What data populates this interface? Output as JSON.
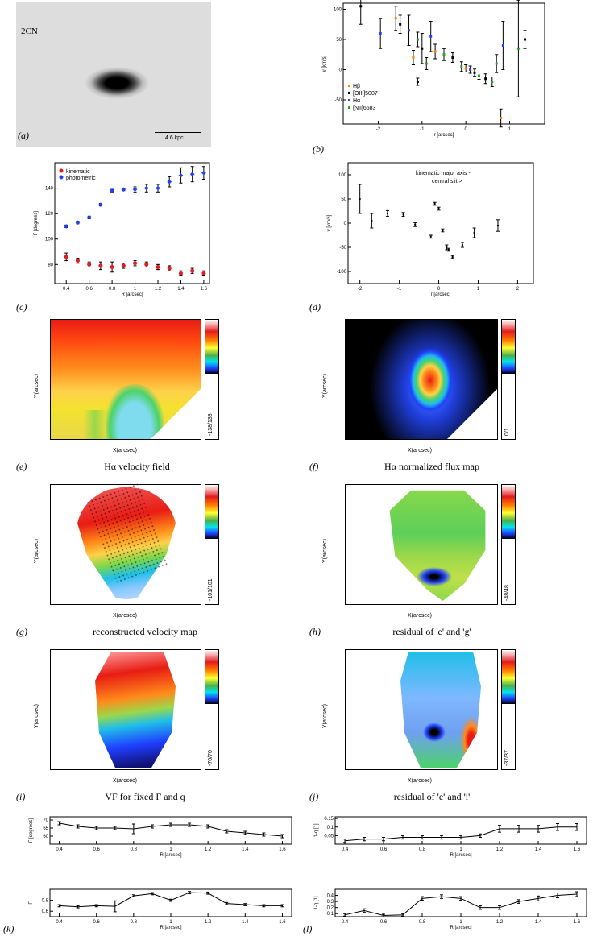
{
  "panels": {
    "a": {
      "label": "(a)",
      "object": "2CN",
      "scale": "4.6 kpc"
    },
    "b": {
      "label": "(b)",
      "ylabel": "v [km/s]",
      "xlabel": "r [arcsec]"
    },
    "c": {
      "label": "(c)",
      "ylabel": "Γ [degrees]",
      "xlabel": "R [arcsec]"
    },
    "d": {
      "label": "(d)",
      "ylabel": "v [km/s]",
      "xlabel": "r [arcsec]",
      "legend": [
        "kinematic major axis -",
        "central slit >"
      ]
    },
    "e": {
      "label": "(e)",
      "title": "Hα velocity field",
      "xlabel": "X(arcsec)",
      "ylabel": "Y(arcsec)",
      "range": "-138/138"
    },
    "f": {
      "label": "(f)",
      "title": "Hα normalized flux map",
      "xlabel": "X(arcsec)",
      "ylabel": "Y(arcsec)",
      "range": "0/1"
    },
    "g": {
      "label": "(g)",
      "title": "reconstructed velocity map",
      "xlabel": "X(arcsec)",
      "ylabel": "Y(arcsec)",
      "range": "-101/101"
    },
    "h": {
      "label": "(h)",
      "title": "residual of 'e' and 'g'",
      "xlabel": "X(arcsec)",
      "ylabel": "Y(arcsec)",
      "range": "-48/48"
    },
    "i": {
      "label": "(i)",
      "title": "VF for fixed Γ and q",
      "xlabel": "X(arcsec)",
      "ylabel": "Y(arcsec)",
      "range": "-70/70"
    },
    "j": {
      "label": "(j)",
      "title": "residual of 'e' and 'i'",
      "xlabel": "X(arcsec)",
      "ylabel": "Y(arcsec)",
      "range": "-37/37"
    },
    "k": {
      "label": "(k)",
      "xlabel": "R [arcsec]"
    },
    "l": {
      "label": "(l)",
      "xlabel": "R [arcsec]"
    }
  },
  "chart_data": [
    {
      "id": "b",
      "type": "scatter",
      "xlabel": "r [arcsec]",
      "ylabel": "v [km/s]",
      "xlim": [
        -2.8,
        1.8
      ],
      "ylim": [
        -90,
        110
      ],
      "xticks": [
        -2,
        -1,
        0,
        1
      ],
      "yticks": [
        -50,
        0,
        50,
        100
      ],
      "legend": [
        {
          "name": "Hβ",
          "color": "#ff7f00",
          "marker": "square"
        },
        {
          "name": "[OIII]5007",
          "color": "#000000",
          "marker": "triangle"
        },
        {
          "name": "Hα",
          "color": "#1f3fff",
          "marker": "x"
        },
        {
          "name": "[NII]6583",
          "color": "#2ca02c",
          "marker": "square"
        }
      ],
      "points": [
        {
          "x": -2.4,
          "y": 105,
          "e": 30,
          "c": "#000000"
        },
        {
          "x": -1.95,
          "y": 60,
          "e": 25,
          "c": "#1f3fff"
        },
        {
          "x": -1.6,
          "y": 85,
          "e": 20,
          "c": "#ff7f00"
        },
        {
          "x": -1.5,
          "y": 75,
          "e": 15,
          "c": "#000000"
        },
        {
          "x": -1.3,
          "y": 65,
          "e": 25,
          "c": "#1f3fff"
        },
        {
          "x": -1.2,
          "y": 20,
          "e": 12,
          "c": "#ff7f00"
        },
        {
          "x": -1.1,
          "y": 50,
          "e": 12,
          "c": "#2ca02c"
        },
        {
          "x": -1.0,
          "y": 35,
          "e": 25,
          "c": "#000000"
        },
        {
          "x": -0.9,
          "y": 10,
          "e": 10,
          "c": "#2ca02c"
        },
        {
          "x": -0.8,
          "y": 55,
          "e": 25,
          "c": "#1f3fff"
        },
        {
          "x": -0.7,
          "y": 30,
          "e": 12,
          "c": "#ff7f00"
        },
        {
          "x": -0.5,
          "y": 25,
          "e": 10,
          "c": "#2ca02c"
        },
        {
          "x": -0.3,
          "y": 20,
          "e": 8,
          "c": "#000000"
        },
        {
          "x": -0.1,
          "y": 5,
          "e": 8,
          "c": "#2ca02c"
        },
        {
          "x": 0.0,
          "y": 2,
          "e": 6,
          "c": "#ff7f00"
        },
        {
          "x": 0.1,
          "y": 0,
          "e": 6,
          "c": "#1f3fff"
        },
        {
          "x": 0.2,
          "y": -5,
          "e": 6,
          "c": "#000000"
        },
        {
          "x": 0.3,
          "y": -10,
          "e": 6,
          "c": "#2ca02c"
        },
        {
          "x": 0.45,
          "y": -15,
          "e": 8,
          "c": "#000000"
        },
        {
          "x": 0.6,
          "y": -20,
          "e": 8,
          "c": "#2ca02c"
        },
        {
          "x": 0.7,
          "y": 10,
          "e": 15,
          "c": "#2ca02c"
        },
        {
          "x": 0.8,
          "y": -80,
          "e": 15,
          "c": "#ff7f00"
        },
        {
          "x": 0.85,
          "y": 40,
          "e": 40,
          "c": "#1f3fff"
        },
        {
          "x": 1.2,
          "y": 35,
          "e": 80,
          "c": "#2ca02c"
        },
        {
          "x": 1.35,
          "y": 50,
          "e": 15,
          "c": "#000000"
        },
        {
          "x": -1.1,
          "y": -20,
          "e": 6,
          "c": "#000000"
        }
      ]
    },
    {
      "id": "c",
      "type": "scatter",
      "xlabel": "R [arcsec]",
      "ylabel": "Γ [degrees]",
      "xlim": [
        0.3,
        1.65
      ],
      "ylim": [
        65,
        160
      ],
      "xticks": [
        0.4,
        0.6,
        0.8,
        1.0,
        1.2,
        1.4,
        1.6
      ],
      "yticks": [
        80,
        100,
        120,
        140
      ],
      "legend": [
        {
          "name": "kinematic",
          "color": "#e41a1c",
          "marker": "circle"
        },
        {
          "name": "photometric",
          "color": "#1f3fff",
          "marker": "diamond"
        }
      ],
      "series": [
        {
          "name": "kinematic",
          "color": "#e41a1c",
          "x": [
            0.4,
            0.5,
            0.6,
            0.7,
            0.8,
            0.9,
            1.0,
            1.1,
            1.2,
            1.3,
            1.4,
            1.5,
            1.6
          ],
          "y": [
            86,
            83,
            80,
            79,
            78,
            79,
            81,
            80,
            78,
            77,
            73,
            75,
            73
          ],
          "e": [
            3,
            2,
            2,
            3,
            4,
            2,
            2,
            2,
            2,
            2,
            2,
            2,
            2
          ]
        },
        {
          "name": "photometric",
          "color": "#1f3fff",
          "x": [
            0.4,
            0.5,
            0.6,
            0.7,
            0.8,
            0.9,
            1.0,
            1.1,
            1.2,
            1.3,
            1.4,
            1.5,
            1.6
          ],
          "y": [
            110,
            113,
            117,
            127,
            138,
            139,
            139,
            140,
            140,
            145,
            150,
            151,
            152
          ],
          "e": [
            1,
            1,
            1,
            1,
            1,
            1,
            2,
            3,
            3,
            4,
            6,
            6,
            5
          ]
        }
      ]
    },
    {
      "id": "d",
      "type": "scatter",
      "xlabel": "r [arcsec]",
      "ylabel": "v [km/s]",
      "xlim": [
        -2.3,
        2.4
      ],
      "ylim": [
        -125,
        125
      ],
      "xticks": [
        -2,
        -1,
        0,
        1,
        2
      ],
      "yticks": [
        -100,
        -50,
        0,
        50,
        100
      ],
      "series": [
        {
          "name": "kinematic major axis",
          "marker": "bar",
          "x": [
            -2.0,
            -1.7,
            -1.3,
            -0.9,
            -0.6,
            -0.2,
            0.2,
            0.6,
            1.5
          ],
          "y": [
            50,
            5,
            20,
            18,
            -3,
            -28,
            -50,
            -45,
            -5
          ],
          "e": [
            30,
            15,
            6,
            4,
            4,
            3,
            5,
            5,
            12
          ]
        },
        {
          "name": "central slit",
          "marker": "tick",
          "x": [
            -0.1,
            0.0,
            0.1,
            0.25,
            0.35,
            0.9
          ],
          "y": [
            40,
            30,
            -15,
            -55,
            -70,
            -20
          ],
          "e": [
            3,
            3,
            3,
            3,
            3,
            10
          ]
        }
      ]
    },
    {
      "id": "k",
      "type": "line",
      "xlabel": "R [arcsec]",
      "ylabel": "Γ [degrees]",
      "xlim": [
        0.35,
        1.65
      ],
      "ylim": [
        55,
        72
      ],
      "xticks": [
        0.4,
        0.6,
        0.8,
        1.0,
        1.2,
        1.4,
        1.6
      ],
      "yticks": [
        60,
        65,
        70
      ],
      "x": [
        0.4,
        0.5,
        0.6,
        0.7,
        0.8,
        0.9,
        1.0,
        1.1,
        1.2,
        1.3,
        1.4,
        1.5,
        1.6
      ],
      "y": [
        68,
        66,
        65,
        65,
        64.5,
        66,
        67,
        67,
        66,
        63,
        62,
        61,
        60
      ],
      "e": [
        1,
        1,
        1,
        1,
        3,
        1,
        1,
        1,
        1,
        1,
        1,
        1,
        1
      ]
    },
    {
      "id": "l",
      "type": "line",
      "xlabel": "R [arcsec]",
      "ylabel": "1-q [1]",
      "xlim": [
        0.35,
        1.65
      ],
      "ylim": [
        0.05,
        0.5
      ],
      "xticks": [
        0.4,
        0.6,
        0.8,
        1.0,
        1.2,
        1.4,
        1.6
      ],
      "yticks": [
        0.1,
        0.2,
        0.3,
        0.4
      ],
      "x": [
        0.4,
        0.5,
        0.6,
        0.7,
        0.8,
        0.9,
        1.0,
        1.1,
        1.2,
        1.3,
        1.4,
        1.5,
        1.6
      ],
      "y": [
        0.08,
        0.15,
        0.07,
        0.08,
        0.35,
        0.38,
        0.35,
        0.2,
        0.2,
        0.3,
        0.35,
        0.4,
        0.42
      ],
      "e": [
        0.02,
        0.03,
        0.02,
        0.02,
        0.03,
        0.03,
        0.03,
        0.03,
        0.03,
        0.03,
        0.04,
        0.04,
        0.04
      ]
    },
    {
      "id": "k2",
      "type": "line",
      "xlabel": "R [arcsec]",
      "ylabel": "Γ",
      "xlim": [
        0.35,
        1.65
      ],
      "ylim": [
        0.5,
        1.0
      ],
      "xticks": [
        0.4,
        0.6,
        0.8,
        1.0,
        1.2,
        1.4,
        1.6
      ],
      "yticks": [
        0.6,
        0.8
      ],
      "x": [
        0.4,
        0.5,
        0.6,
        0.7,
        0.8,
        0.9,
        1.0,
        1.1,
        1.2,
        1.3,
        1.4,
        1.5,
        1.6
      ],
      "y": [
        0.7,
        0.68,
        0.7,
        0.69,
        0.88,
        0.92,
        0.8,
        0.94,
        0.93,
        0.74,
        0.72,
        0.7,
        0.7
      ],
      "e": [
        0.02,
        0.02,
        0.02,
        0.1,
        0.02,
        0.02,
        0.02,
        0.02,
        0.02,
        0.02,
        0.02,
        0.02,
        0.02
      ]
    },
    {
      "id": "l2",
      "type": "line",
      "xlabel": "R [arcsec]",
      "ylabel": "1-q [1]",
      "xlim": [
        0.35,
        1.65
      ],
      "ylim": [
        0.0,
        0.16
      ],
      "xticks": [
        0.4,
        0.6,
        0.8,
        1.0,
        1.2,
        1.4,
        1.6
      ],
      "yticks": [
        0.05,
        0.1,
        0.15
      ],
      "x": [
        0.4,
        0.5,
        0.6,
        0.7,
        0.8,
        0.9,
        1.0,
        1.1,
        1.2,
        1.3,
        1.4,
        1.5,
        1.6
      ],
      "y": [
        0.02,
        0.03,
        0.03,
        0.04,
        0.04,
        0.04,
        0.04,
        0.05,
        0.09,
        0.09,
        0.09,
        0.1,
        0.1
      ],
      "e": [
        0.01,
        0.01,
        0.01,
        0.01,
        0.01,
        0.01,
        0.01,
        0.01,
        0.02,
        0.02,
        0.02,
        0.02,
        0.02
      ]
    }
  ]
}
